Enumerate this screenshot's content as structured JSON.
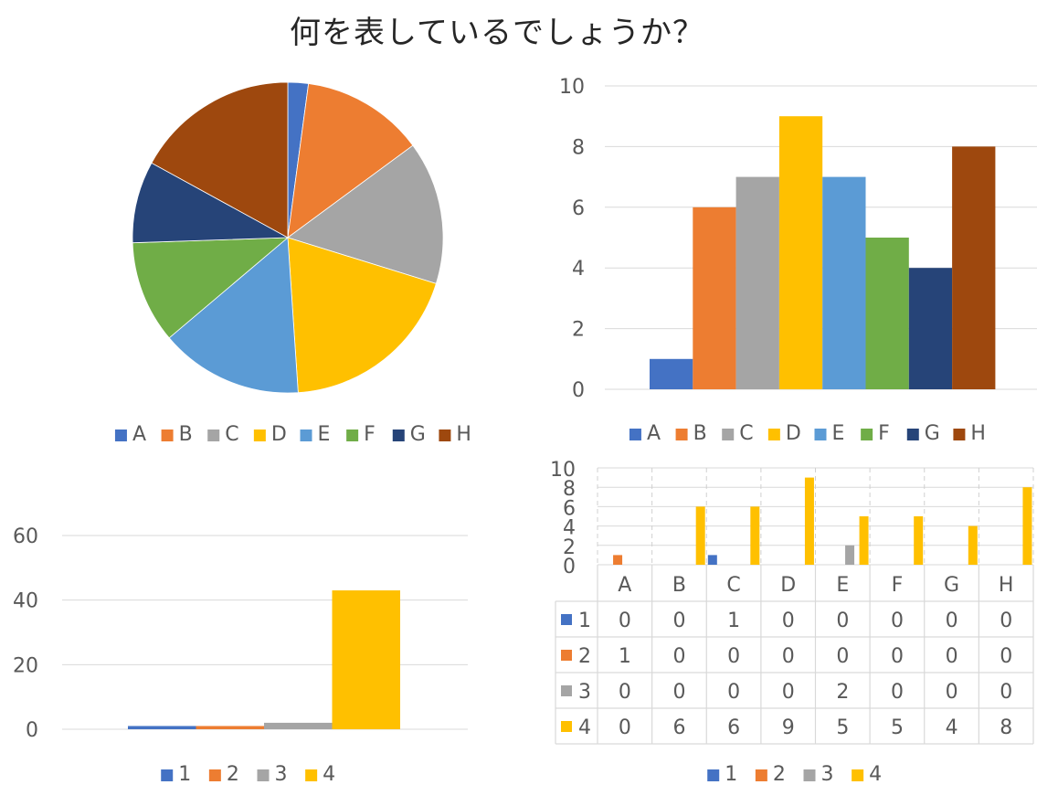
{
  "title": "何を表しているでしょうか？",
  "colors": {
    "A": "#4472C4",
    "B": "#ED7D31",
    "C": "#A5A5A5",
    "D": "#FFC000",
    "E": "#5B9BD5",
    "F": "#70AD47",
    "G": "#264478",
    "H": "#9E480E",
    "s1": "#4472C4",
    "s2": "#ED7D31",
    "s3": "#A5A5A5",
    "s4": "#FFC000"
  },
  "chart_data": [
    {
      "type": "pie",
      "categories": [
        "A",
        "B",
        "C",
        "D",
        "E",
        "F",
        "G",
        "H"
      ],
      "values": [
        1,
        6,
        7,
        9,
        7,
        5,
        4,
        8
      ],
      "legend": "bottom"
    },
    {
      "type": "bar",
      "categories": [
        "A",
        "B",
        "C",
        "D",
        "E",
        "F",
        "G",
        "H"
      ],
      "values": [
        1,
        6,
        7,
        9,
        7,
        5,
        4,
        8
      ],
      "ylim": [
        0,
        10
      ],
      "yticks": [
        0,
        2,
        4,
        6,
        8,
        10
      ],
      "grid": true,
      "legend": "bottom"
    },
    {
      "type": "bar",
      "series": [
        {
          "name": "1",
          "values": [
            1
          ]
        },
        {
          "name": "2",
          "values": [
            1
          ]
        },
        {
          "name": "3",
          "values": [
            2
          ]
        },
        {
          "name": "4",
          "values": [
            43
          ]
        }
      ],
      "ylim": [
        0,
        60
      ],
      "yticks": [
        0,
        20,
        40,
        60
      ],
      "grid": true,
      "legend": "bottom"
    },
    {
      "type": "bar",
      "categories": [
        "A",
        "B",
        "C",
        "D",
        "E",
        "F",
        "G",
        "H"
      ],
      "series": [
        {
          "name": "1",
          "values": [
            0,
            0,
            1,
            0,
            0,
            0,
            0,
            0
          ]
        },
        {
          "name": "2",
          "values": [
            1,
            0,
            0,
            0,
            0,
            0,
            0,
            0
          ]
        },
        {
          "name": "3",
          "values": [
            0,
            0,
            0,
            0,
            2,
            0,
            0,
            0
          ]
        },
        {
          "name": "4",
          "values": [
            0,
            6,
            6,
            9,
            5,
            5,
            4,
            8
          ]
        }
      ],
      "ylim": [
        0,
        10
      ],
      "yticks": [
        0,
        2,
        4,
        6,
        8,
        10
      ],
      "grid": true,
      "data_table": true,
      "legend": "bottom"
    }
  ]
}
